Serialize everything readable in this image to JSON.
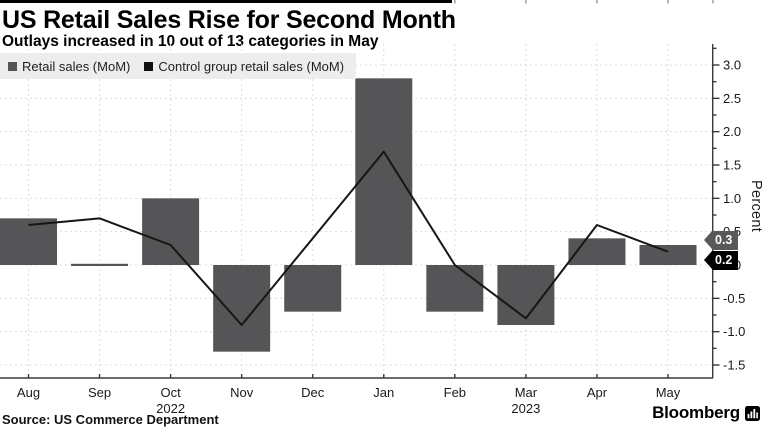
{
  "header": {
    "title": "US Retail Sales Rise for Second Month",
    "subtitle": "Outlays increased in 10 out of 13 categories in May"
  },
  "legend": {
    "items": [
      {
        "label": "Retail sales (MoM)",
        "color": "#555557"
      },
      {
        "label": "Control group retail sales (MoM)",
        "color": "#111111"
      }
    ]
  },
  "footer": {
    "source": "Source: US Commerce Department",
    "brand": "Bloomberg"
  },
  "chart_data": {
    "type": "bar+line",
    "categories": [
      "Aug",
      "Sep",
      "Oct",
      "Nov",
      "Dec",
      "Jan",
      "Feb",
      "Mar",
      "Apr",
      "May"
    ],
    "year_labels": [
      {
        "index": 2,
        "text": "2022"
      },
      {
        "index": 7,
        "text": "2023"
      }
    ],
    "series": [
      {
        "name": "Retail sales (MoM)",
        "type": "bar",
        "color": "#555557",
        "values": [
          0.7,
          0.0,
          1.0,
          -1.3,
          -0.7,
          2.8,
          -0.7,
          -0.9,
          0.4,
          0.3
        ]
      },
      {
        "name": "Control group retail sales (MoM)",
        "type": "line",
        "color": "#161616",
        "values": [
          0.6,
          0.7,
          0.3,
          -0.9,
          0.4,
          1.7,
          0.0,
          -0.8,
          0.6,
          0.2
        ]
      }
    ],
    "ylabel": "Percent",
    "ylim": [
      -1.69,
      3.31
    ],
    "ytick_labels": [
      "3.0",
      "2.5",
      "2.0",
      "1.5",
      "1.0",
      "0.5",
      "0.0",
      "-0.5",
      "-1.0",
      "-1.5"
    ],
    "ytick_minor_step": 0.25,
    "grid": "dashed",
    "legend_position": "top-left",
    "end_labels": [
      {
        "text": "0.3",
        "value": 0.3,
        "bg": "#58595b"
      },
      {
        "text": "0.2",
        "value": 0.2,
        "bg": "#000000"
      }
    ]
  }
}
